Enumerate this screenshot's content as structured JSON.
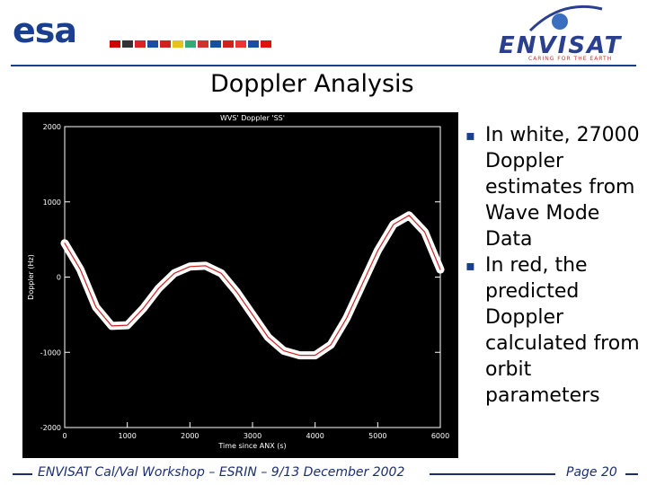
{
  "header": {
    "logo_left": "esa",
    "logo_right": "ENVISAT",
    "tagline": "CARING FOR THE EARTH"
  },
  "title": "Doppler Analysis",
  "bullets": [
    "In white, 27000 Doppler estimates from Wave Mode Data",
    "In red, the predicted Doppler calculated from orbit parameters"
  ],
  "footer": {
    "text": "ENVISAT Cal/Val Workshop – ESRIN – 9/13 December 2002",
    "page": "Page 20"
  },
  "chart_data": {
    "type": "line",
    "title": "WVS' Doppler 'SS'",
    "x_label": "Time since ANX (s)",
    "y_label": "Doppler (Hz)",
    "x": [
      0,
      250,
      500,
      750,
      1000,
      1250,
      1500,
      1750,
      2000,
      2250,
      2500,
      2750,
      3000,
      3250,
      3500,
      3750,
      4000,
      4250,
      4500,
      4750,
      5000,
      5250,
      5500,
      5750,
      6000
    ],
    "series": [
      {
        "color": "#ffffff",
        "values": [
          450,
          100,
          -400,
          -650,
          -640,
          -420,
          -150,
          50,
          140,
          150,
          50,
          -200,
          -500,
          -800,
          -980,
          -1040,
          -1040,
          -900,
          -550,
          -100,
          350,
          700,
          820,
          600,
          100
        ]
      },
      {
        "color": "#d02020",
        "values": [
          450,
          100,
          -400,
          -650,
          -640,
          -420,
          -150,
          50,
          140,
          150,
          50,
          -200,
          -500,
          -800,
          -980,
          -1040,
          -1040,
          -900,
          -550,
          -100,
          350,
          700,
          820,
          600,
          100
        ]
      }
    ],
    "xlim": [
      0,
      6000
    ],
    "xticks": [
      0,
      1000,
      2000,
      3000,
      4000,
      5000,
      6000
    ],
    "ylim": [
      -2000,
      2000
    ],
    "yticks": [
      -2000,
      -1000,
      0,
      1000,
      2000
    ]
  }
}
